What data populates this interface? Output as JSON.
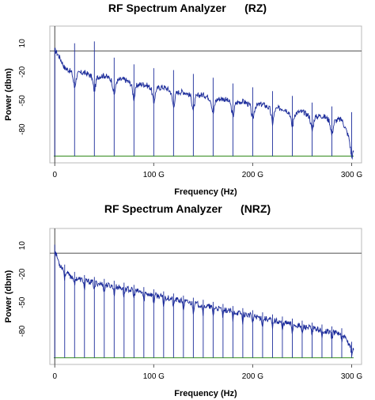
{
  "chart_data": [
    {
      "type": "line",
      "title": "RF Spectrum Analyzer      (RZ)",
      "xlabel": "Frequency (Hz)",
      "ylabel": "Power (dbm)",
      "x_unit": "GHz",
      "xlim": [
        -5,
        310
      ],
      "ylim": [
        -115,
        28
      ],
      "x_ticks": [
        {
          "value": 0,
          "label": "0"
        },
        {
          "value": 100,
          "label": "100 G"
        },
        {
          "value": 200,
          "label": "200 G"
        },
        {
          "value": 300,
          "label": "300 G"
        }
      ],
      "y_ticks": [
        {
          "value": 10,
          "label": "10"
        },
        {
          "value": -20,
          "label": "-20"
        },
        {
          "value": -50,
          "label": "-50"
        },
        {
          "value": -80,
          "label": "-80"
        }
      ],
      "reference_level": 2,
      "noise_floor": -108,
      "carrier_spacing": 20,
      "carriers_x": [
        0,
        20,
        40,
        60,
        80,
        100,
        120,
        140,
        160,
        180,
        200,
        220,
        240,
        260,
        280,
        300
      ],
      "carrier_peaks": [
        5,
        10,
        12,
        -5,
        -12,
        -16,
        -18,
        -22,
        -26,
        -32,
        -36,
        -40,
        -45,
        -52,
        -56,
        -62
      ],
      "envelope_x": [
        0,
        10,
        30,
        50,
        70,
        90,
        110,
        130,
        150,
        170,
        190,
        210,
        230,
        250,
        270,
        290,
        302
      ],
      "envelope_y": [
        5,
        -20,
        -25,
        -28,
        -32,
        -37,
        -40,
        -45,
        -48,
        -52,
        -55,
        -58,
        -62,
        -66,
        -70,
        -74,
        -100
      ],
      "grid": false,
      "colors": {
        "trace": "#1a2a9a",
        "carrier": "#1a2a9a",
        "floor": "#4e9a3a",
        "axis": "#000000"
      }
    },
    {
      "type": "line",
      "title": "RF Spectrum Analyzer      (NRZ)",
      "xlabel": "Frequency (Hz)",
      "ylabel": "Power (dbm)",
      "x_unit": "GHz",
      "xlim": [
        -5,
        310
      ],
      "ylim": [
        -115,
        28
      ],
      "x_ticks": [
        {
          "value": 0,
          "label": "0"
        },
        {
          "value": 100,
          "label": "100 G"
        },
        {
          "value": 200,
          "label": "200 G"
        },
        {
          "value": 300,
          "label": "300 G"
        }
      ],
      "y_ticks": [
        {
          "value": 10,
          "label": "10"
        },
        {
          "value": -20,
          "label": "-20"
        },
        {
          "value": -50,
          "label": "-50"
        },
        {
          "value": -80,
          "label": "-80"
        }
      ],
      "reference_level": 2,
      "noise_floor": -108,
      "carrier_spacing": 10,
      "carriers_x": [
        0,
        10,
        20,
        30,
        40,
        50,
        60,
        70,
        80,
        90,
        100,
        110,
        120,
        130,
        140,
        150,
        160,
        170,
        180,
        190,
        200,
        210,
        220,
        230,
        240,
        250,
        260,
        270,
        280,
        290,
        300
      ],
      "carrier_peaks": [],
      "envelope_x": [
        0,
        5,
        15,
        30,
        50,
        70,
        100,
        150,
        200,
        250,
        290,
        302
      ],
      "envelope_y": [
        5,
        -10,
        -22,
        -27,
        -31,
        -35,
        -42,
        -53,
        -64,
        -75,
        -83,
        -100
      ],
      "grid": false,
      "colors": {
        "trace": "#1a2a9a",
        "carrier": "#1a2a9a",
        "floor": "#4e9a3a",
        "axis": "#000000"
      }
    }
  ]
}
